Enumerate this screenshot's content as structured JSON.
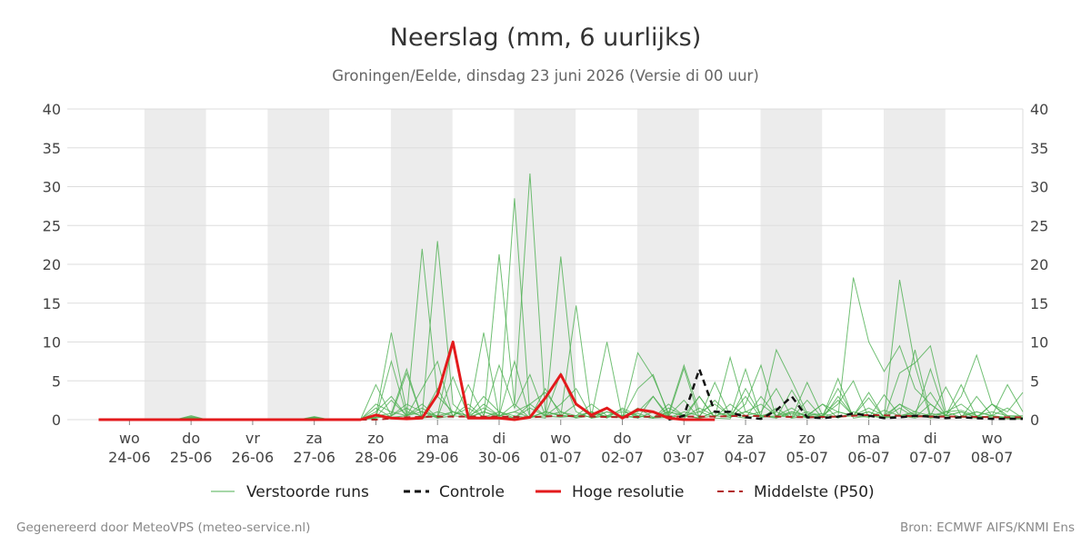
{
  "chart_data": {
    "type": "line",
    "title": "Neerslag (mm, 6 uurlijks)",
    "subtitle": "Groningen/Eelde, dinsdag 23 juni 2026 (Versie di 00 uur)",
    "xlabel": "",
    "ylabel": "",
    "ylim": [
      0,
      40
    ],
    "yticks": [
      0,
      5,
      10,
      15,
      20,
      25,
      30,
      35,
      40
    ],
    "x_unit": "6-hour steps from 23-06 18:00",
    "xlim": [
      0,
      60
    ],
    "grid": true,
    "legend_position": "bottom",
    "day_ticks": [
      {
        "x": 2,
        "day": "wo",
        "date": "24-06"
      },
      {
        "x": 6,
        "day": "do",
        "date": "25-06"
      },
      {
        "x": 10,
        "day": "vr",
        "date": "26-06"
      },
      {
        "x": 14,
        "day": "za",
        "date": "27-06"
      },
      {
        "x": 18,
        "day": "zo",
        "date": "28-06"
      },
      {
        "x": 22,
        "day": "ma",
        "date": "29-06"
      },
      {
        "x": 26,
        "day": "di",
        "date": "30-06"
      },
      {
        "x": 30,
        "day": "wo",
        "date": "01-07"
      },
      {
        "x": 34,
        "day": "do",
        "date": "02-07"
      },
      {
        "x": 38,
        "day": "vr",
        "date": "03-07"
      },
      {
        "x": 42,
        "day": "za",
        "date": "04-07"
      },
      {
        "x": 46,
        "day": "zo",
        "date": "05-07"
      },
      {
        "x": 50,
        "day": "ma",
        "date": "06-07"
      },
      {
        "x": 54,
        "day": "di",
        "date": "07-07"
      },
      {
        "x": 58,
        "day": "wo",
        "date": "08-07"
      }
    ],
    "night_bands": [
      [
        3,
        7
      ],
      [
        11,
        15
      ],
      [
        19,
        23
      ],
      [
        27,
        31
      ],
      [
        35,
        39
      ],
      [
        43,
        47
      ],
      [
        51,
        55
      ]
    ],
    "colors": {
      "perturbed": "#4caf50",
      "control": "#111111",
      "high_res": "#e31a1c",
      "median": "#b22222",
      "band": "#ececec",
      "grid": "#dddddd"
    },
    "series": [
      {
        "name": "Hoge resolutie",
        "x": [
          0,
          1,
          2,
          3,
          4,
          5,
          6,
          7,
          8,
          9,
          10,
          11,
          12,
          13,
          14,
          15,
          16,
          17,
          18,
          19,
          20,
          21,
          22,
          23,
          24,
          25,
          26,
          27,
          28,
          29,
          30,
          31,
          32,
          33,
          34,
          35,
          36,
          37,
          38,
          39,
          40
        ],
        "values": [
          0,
          0,
          0,
          0,
          0,
          0,
          0,
          0,
          0,
          0,
          0,
          0,
          0,
          0,
          0,
          0,
          0,
          0,
          0.6,
          0.2,
          0.1,
          0.2,
          3.2,
          10,
          0.2,
          0.2,
          0.2,
          0,
          0.3,
          2.8,
          5.8,
          2,
          0.6,
          1.5,
          0.2,
          1.3,
          1,
          0.2,
          0,
          0,
          0
        ]
      },
      {
        "name": "Controle",
        "x": [
          37,
          38,
          39,
          40,
          41,
          42,
          43,
          44,
          45,
          46,
          47,
          48,
          49,
          50,
          51,
          52,
          53,
          54,
          55,
          56,
          57,
          58,
          59,
          60
        ],
        "values": [
          0,
          0.5,
          6.5,
          1,
          1,
          0.3,
          0.1,
          1.2,
          3,
          0.3,
          0.2,
          0.4,
          0.8,
          0.5,
          0.2,
          0.3,
          0.5,
          0.4,
          0.2,
          0.3,
          0.2,
          0.1,
          0.1,
          0.1
        ]
      },
      {
        "name": "Middelste (P50)",
        "x": [
          0,
          6,
          12,
          18,
          20,
          22,
          24,
          26,
          28,
          30,
          32,
          34,
          36,
          38,
          40,
          42,
          44,
          46,
          48,
          50,
          52,
          54,
          56,
          58,
          60
        ],
        "values": [
          0,
          0,
          0,
          0,
          0.3,
          0.4,
          0.4,
          0.4,
          0.3,
          0.5,
          0.4,
          0.3,
          0.4,
          0.4,
          0.4,
          0.5,
          0.4,
          0.3,
          0.4,
          0.6,
          0.5,
          0.4,
          0.4,
          0.3,
          0.3
        ]
      }
    ],
    "perturbed_runs": {
      "name": "Verstoorde runs",
      "x_start": 0,
      "runs": [
        [
          0,
          0,
          0,
          0,
          0,
          0,
          0.5,
          0,
          0,
          0,
          0,
          0,
          0,
          0,
          0.4,
          0,
          0,
          0,
          2,
          1,
          0.5,
          22,
          3,
          1,
          0.5,
          0.2,
          21.3,
          2,
          0.2,
          1,
          0.6,
          0.3,
          1,
          0.4,
          0.5,
          0.8,
          0.2,
          0.3,
          0.1,
          3,
          0.2,
          0.1,
          4,
          0.5,
          0.3,
          0.8,
          0.2,
          0.4,
          0.3,
          18.3,
          10,
          6.2,
          9.5,
          4,
          2,
          0.5,
          3,
          8.3,
          2,
          1,
          3.5
        ],
        [
          0,
          0,
          0,
          0,
          0,
          0,
          0.4,
          0,
          0,
          0,
          0,
          0,
          0,
          0,
          0.3,
          0,
          0,
          0,
          0.5,
          11.2,
          1,
          0.5,
          23,
          2,
          0.2,
          1,
          0.3,
          28.5,
          0.5,
          0.2,
          21,
          2,
          0.5,
          10,
          0.2,
          8.6,
          5.5,
          0.8,
          7,
          1,
          0.3,
          8,
          1,
          0.5,
          9,
          5,
          0.8,
          0.4,
          5.3,
          0.2,
          0.5,
          0.3,
          18,
          7,
          0.2,
          1,
          1.2,
          0.5,
          0.3,
          0.2,
          0.1
        ],
        [
          0,
          0,
          0,
          0,
          0,
          0,
          0.3,
          0,
          0,
          0,
          0,
          0,
          0,
          0,
          0.2,
          0,
          0,
          0,
          4.5,
          0.5,
          6,
          0.2,
          0.5,
          9.8,
          0.3,
          11.2,
          0.4,
          2,
          31.7,
          1,
          0.5,
          14.7,
          0.2,
          1,
          0.5,
          1,
          3,
          0.5,
          6.6,
          0.2,
          1,
          0.3,
          2,
          7,
          0.2,
          3.8,
          0.5,
          2,
          0.2,
          1,
          0.5,
          0.2,
          6,
          7.3,
          9.5,
          1,
          0.3,
          0.2,
          0.5,
          0.1,
          0.1
        ],
        [
          0,
          0,
          0,
          0,
          0,
          0,
          0.2,
          0,
          0,
          0,
          0,
          0,
          0,
          0,
          0.2,
          0,
          0,
          0,
          1,
          3,
          0.5,
          4,
          7.5,
          0.3,
          4.5,
          0.5,
          7,
          1.5,
          5.8,
          0.5,
          2,
          4,
          0.3,
          1.5,
          0.2,
          4,
          5.8,
          0.5,
          2.5,
          0.2,
          4.8,
          0.5,
          6.5,
          0.3,
          0.5,
          0.3,
          4.8,
          0.5,
          2,
          5,
          0.2,
          3.2,
          0.5,
          1,
          3.5,
          0.5,
          4.5,
          0.3,
          2,
          0.2,
          0.3
        ],
        [
          0,
          0,
          0,
          0,
          0,
          0,
          0.1,
          0,
          0,
          0,
          0,
          0,
          0,
          0,
          0.1,
          0,
          0,
          0,
          0.2,
          7.5,
          0.5,
          1.5,
          0.2,
          1,
          0.5,
          3,
          1,
          0.2,
          2,
          0.5,
          6,
          1,
          0.2,
          0.5,
          1.3,
          0.2,
          3,
          0.2,
          1,
          0.5,
          2.5,
          0.5,
          3,
          0.2,
          1.5,
          0.2,
          2.5,
          0.2,
          3,
          0.5,
          2.8,
          0.2,
          0.5,
          9,
          0.5,
          4.2,
          0.5,
          1,
          0.5,
          4.5,
          1
        ],
        [
          0,
          0,
          0,
          0,
          0,
          0,
          0.2,
          0,
          0,
          0,
          0,
          0,
          0,
          0,
          0.3,
          0,
          0,
          0,
          0.5,
          0.8,
          6.5,
          0.2,
          1,
          0.5,
          2,
          0.3,
          1,
          0.5,
          0.2,
          4,
          0.5,
          0.3,
          1,
          0.2,
          1.5,
          0.5,
          0.2,
          2,
          0.5,
          0.2,
          1,
          0.5,
          0.2,
          3,
          0.5,
          1.5,
          0.2,
          0.5,
          4,
          0.5,
          1,
          0.2,
          2,
          0.5,
          6.5,
          0.5,
          0.2,
          3,
          0.5,
          1.5,
          0.2
        ],
        [
          0,
          0,
          0,
          0,
          0,
          0,
          0.1,
          0,
          0,
          0,
          0,
          0,
          0,
          0,
          0.1,
          0,
          0,
          0,
          0.3,
          2.5,
          0.5,
          2,
          0.3,
          5.5,
          0.5,
          1.5,
          0.5,
          7.5,
          0.3,
          1,
          0.5,
          2,
          0.3,
          0.5,
          0.2,
          1.5,
          0.3,
          1,
          0.5,
          3,
          0.3,
          2,
          0.5,
          1,
          4,
          0.3,
          1,
          0.5,
          2.5,
          0.5,
          3.5,
          0.2,
          1.5,
          0.3,
          2,
          0.5,
          1,
          0.2,
          2,
          0.5,
          0.5
        ],
        [
          0,
          0,
          0,
          0,
          0,
          0,
          0.1,
          0,
          0,
          0,
          0,
          0,
          0,
          0,
          0.1,
          0,
          0,
          0,
          0.2,
          0.5,
          2,
          1,
          0.5,
          1,
          0.2,
          2,
          0.5,
          1,
          2,
          3.5,
          1,
          0.5,
          2,
          0.5,
          1,
          0.5,
          0.2,
          1.5,
          0.5,
          1,
          2,
          0.5,
          1,
          2,
          0.5,
          1,
          0.5,
          2,
          1,
          0.5,
          1.5,
          0.5,
          2,
          1,
          0.5,
          1,
          2,
          0.5,
          1,
          0.5,
          0.3
        ],
        [
          0,
          0,
          0,
          0,
          0,
          0,
          0,
          0,
          0,
          0,
          0,
          0,
          0,
          0,
          0,
          0,
          0,
          0,
          1.5,
          0.3,
          0.5,
          1,
          0.2,
          0.5,
          1.5,
          0.3,
          0.5,
          1,
          0.3,
          0.5,
          1,
          0.2,
          0.5,
          1,
          0.3,
          0.5,
          0.2,
          1,
          0.5,
          0.2,
          0.5,
          1,
          0.3,
          0.5,
          1,
          0.2,
          0.5,
          0.8,
          0.3,
          0.5,
          1,
          0.3,
          0.5,
          0.8,
          0.2,
          0.5,
          1,
          0.3,
          0.5,
          0.2,
          0.2
        ],
        [
          0,
          0,
          0,
          0,
          0,
          0,
          0,
          0,
          0,
          0,
          0,
          0,
          0,
          0,
          0,
          0,
          0,
          0,
          0.3,
          0.5,
          1.5,
          0.3,
          4,
          0.5,
          0.3,
          1,
          0.5,
          0.2,
          1.5,
          0.5,
          0.3,
          0.5,
          1,
          0.3,
          0.5,
          0.2,
          1,
          0.5,
          0.3,
          1.5,
          0.5,
          0.3,
          1,
          0.5,
          0.2,
          1,
          0.5,
          0.3,
          1,
          0.5,
          0.3,
          1.2,
          0.5,
          0.2,
          0.8,
          0.5,
          0.3,
          1,
          0.5,
          0.3,
          0.2
        ]
      ]
    }
  },
  "legend": {
    "perturbed": "Verstoorde runs",
    "control": "Controle",
    "high_res": "Hoge resolutie",
    "median": "Middelste (P50)"
  },
  "footer": {
    "left": "Gegenereerd door MeteoVPS (meteo-service.nl)",
    "right": "Bron: ECMWF AIFS/KNMI Ens"
  }
}
